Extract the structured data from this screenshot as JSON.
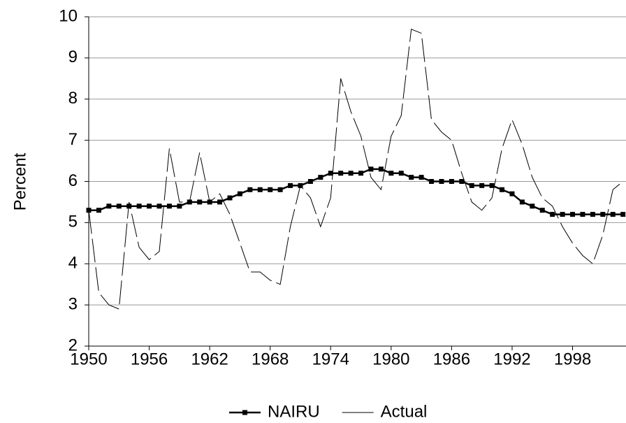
{
  "chart_data": {
    "type": "line",
    "y_label": "Percent",
    "x": [
      1950,
      1951,
      1952,
      1953,
      1954,
      1955,
      1956,
      1957,
      1958,
      1959,
      1960,
      1961,
      1962,
      1963,
      1964,
      1965,
      1966,
      1967,
      1968,
      1969,
      1970,
      1971,
      1972,
      1973,
      1974,
      1975,
      1976,
      1977,
      1978,
      1979,
      1980,
      1981,
      1982,
      1983,
      1984,
      1985,
      1986,
      1987,
      1988,
      1989,
      1990,
      1991,
      1992,
      1993,
      1994,
      1995,
      1996,
      1997,
      1998,
      1999,
      2000,
      2001,
      2002,
      2003
    ],
    "series": [
      {
        "name": "NAIRU",
        "color": "#000000",
        "values": [
          5.3,
          5.3,
          5.4,
          5.4,
          5.4,
          5.4,
          5.4,
          5.4,
          5.4,
          5.4,
          5.5,
          5.5,
          5.5,
          5.5,
          5.6,
          5.7,
          5.8,
          5.8,
          5.8,
          5.8,
          5.9,
          5.9,
          6.0,
          6.1,
          6.2,
          6.2,
          6.2,
          6.2,
          6.3,
          6.3,
          6.2,
          6.2,
          6.1,
          6.1,
          6.0,
          6.0,
          6.0,
          6.0,
          5.9,
          5.9,
          5.9,
          5.8,
          5.7,
          5.5,
          5.4,
          5.3,
          5.2,
          5.2,
          5.2,
          5.2,
          5.2,
          5.2,
          5.2,
          5.2
        ]
      },
      {
        "name": "Actual",
        "color": "#000000",
        "values": [
          5.3,
          3.3,
          3.0,
          2.9,
          5.5,
          4.4,
          4.1,
          4.3,
          6.8,
          5.5,
          5.5,
          6.7,
          5.5,
          5.7,
          5.2,
          4.5,
          3.8,
          3.8,
          3.6,
          3.5,
          4.9,
          5.9,
          5.6,
          4.9,
          5.6,
          8.5,
          7.7,
          7.1,
          6.1,
          5.8,
          7.1,
          7.6,
          9.7,
          9.6,
          7.5,
          7.2,
          7.0,
          6.2,
          5.5,
          5.3,
          5.6,
          6.8,
          7.5,
          6.9,
          6.1,
          5.6,
          5.4,
          4.9,
          4.5,
          4.2,
          4.0,
          4.7,
          5.8,
          6.0
        ]
      }
    ],
    "xlim": [
      1950,
      2003.3
    ],
    "xticks": [
      1950,
      1956,
      1962,
      1968,
      1974,
      1980,
      1986,
      1992,
      1998
    ],
    "ylim": [
      2,
      10
    ],
    "yticks": [
      2,
      3,
      4,
      5,
      6,
      7,
      8,
      9,
      10
    ],
    "grid": true,
    "legend": "bottom"
  }
}
